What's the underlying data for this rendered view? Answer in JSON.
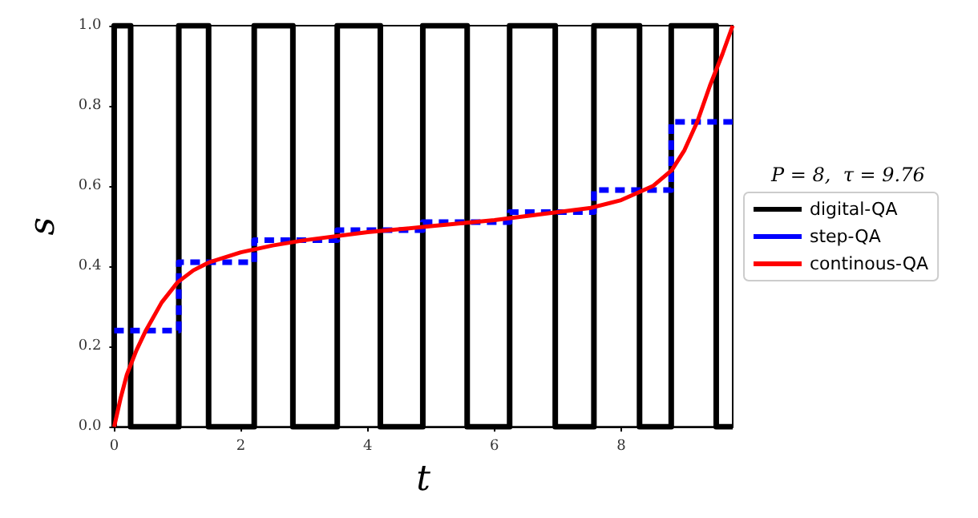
{
  "chart_data": {
    "type": "line",
    "xlabel": "t",
    "ylabel": "s",
    "legend_title": "P = 8,  τ = 9.76",
    "xlim": [
      0,
      9.76
    ],
    "ylim": [
      0,
      1
    ],
    "xticks": [
      0,
      2,
      4,
      6,
      8
    ],
    "yticks": [
      {
        "value": 0,
        "label": "0.0"
      },
      {
        "value": 0.2,
        "label": "0.2"
      },
      {
        "value": 0.4,
        "label": "0.4"
      },
      {
        "value": 0.6,
        "label": "0.6"
      },
      {
        "value": 0.8,
        "label": "0.8"
      },
      {
        "value": 1,
        "label": "1.0"
      }
    ],
    "grid": false,
    "legend": "right",
    "marker": "none",
    "series": [
      {
        "name": "digital-QA",
        "type": "step",
        "color": "#000000",
        "line_style": "solid",
        "x": [
          0,
          0,
          0.26,
          1.02,
          1.49,
          2.21,
          2.82,
          3.52,
          4.2,
          4.87,
          5.57,
          6.24,
          6.96,
          7.57,
          8.29,
          8.79,
          9.5,
          9.76
        ],
        "values": [
          0,
          1,
          0,
          1,
          0,
          1,
          0,
          1,
          0,
          1,
          0,
          1,
          0,
          1,
          0,
          1,
          0,
          0
        ]
      },
      {
        "name": "step-QA",
        "type": "step",
        "color": "#0000ff",
        "line_style": "dashed",
        "x": [
          0,
          1.02,
          2.21,
          3.52,
          4.87,
          6.24,
          7.57,
          8.79,
          9.76
        ],
        "values": [
          0.24,
          0.41,
          0.465,
          0.49,
          0.51,
          0.535,
          0.59,
          0.76,
          0.76
        ]
      },
      {
        "name": "continous-QA",
        "color": "#ff0000",
        "line_style": "solid",
        "x": [
          0,
          0.1,
          0.2,
          0.35,
          0.5,
          0.75,
          1,
          1.25,
          1.5,
          2,
          2.5,
          3,
          4,
          5,
          6,
          7,
          7.5,
          8,
          8.5,
          8.8,
          9,
          9.2,
          9.4,
          9.6,
          9.76
        ],
        "values": [
          0,
          0.07,
          0.13,
          0.19,
          0.24,
          0.31,
          0.36,
          0.39,
          0.41,
          0.435,
          0.452,
          0.465,
          0.485,
          0.5,
          0.515,
          0.535,
          0.545,
          0.565,
          0.6,
          0.64,
          0.69,
          0.76,
          0.85,
          0.93,
          1
        ]
      }
    ]
  }
}
